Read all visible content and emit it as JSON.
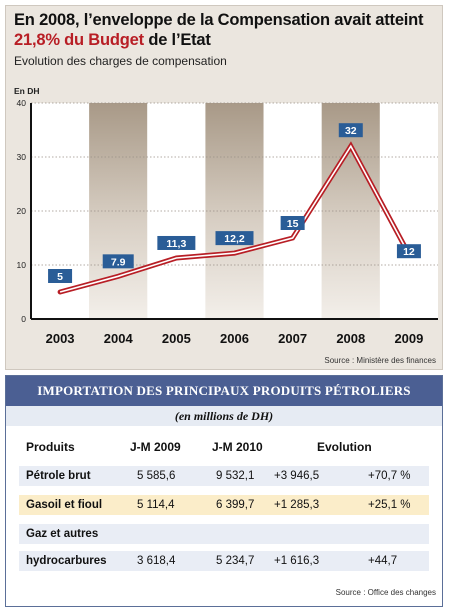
{
  "chart": {
    "title_line1": "En 2008, l’enveloppe de la Compensation avait atteint",
    "title_line2_highlight": "21,8% du Budget",
    "title_line2_rest": " de l’Etat",
    "subtitle": "Evolution des charges de compensation",
    "unit": "En DH",
    "source": "Source : Ministère des finances"
  },
  "colors": {
    "line": "#b81e25",
    "label_box": "#2a5d97",
    "label_box_highlight": "#2a5d97",
    "shade_band": "#bfb3a4",
    "white_band": "#ffffff",
    "table_header": "#4b5f93",
    "row_alt": "#fbedc9",
    "row_plain": "#e9edf5"
  },
  "chart_data": {
    "type": "line",
    "title": "En 2008, l’enveloppe de la Compensation avait atteint 21,8% du Budget de l’Etat",
    "subtitle": "Evolution des charges de compensation",
    "xlabel": "",
    "ylabel": "En DH",
    "categories": [
      "2003",
      "2004",
      "2005",
      "2006",
      "2007",
      "2008",
      "2009"
    ],
    "values": [
      5,
      7.9,
      11.3,
      12.2,
      15,
      32,
      12
    ],
    "data_labels": [
      "5",
      "7.9",
      "11,3",
      "12,2",
      "15",
      "32",
      "12"
    ],
    "ylim": [
      0,
      40
    ],
    "yticks": [
      0,
      10,
      20,
      30,
      40
    ],
    "grid": true
  },
  "table": {
    "title": "IMPORTATION DES PRINCIPAUX PRODUITS PÉTROLIERS",
    "subtitle": "(en millions de DH)",
    "headers": {
      "produits": "Produits",
      "jm2009": "J-M 2009",
      "jm2010": "J-M 2010",
      "evolution": "Evolution"
    },
    "rows": [
      {
        "name": "Pétrole brut",
        "jm2009": "5 585,6",
        "jm2010": "9 532,1",
        "diff": "+3 946,5",
        "pct": "+70,7 %"
      },
      {
        "name": "Gasoil et fioul",
        "jm2009": "5 114,4",
        "jm2010": "6 399,7",
        "diff": "+1 285,3",
        "pct": "+25,1 %"
      },
      {
        "name": "Gaz et autres",
        "jm2009": "",
        "jm2010": "",
        "diff": "",
        "pct": ""
      },
      {
        "name": "hydrocarbures",
        "jm2009": "3 618,4",
        "jm2010": "5 234,7",
        "diff": "+1 616,3",
        "pct": "+44,7"
      }
    ],
    "source": "Source : Office des changes"
  }
}
